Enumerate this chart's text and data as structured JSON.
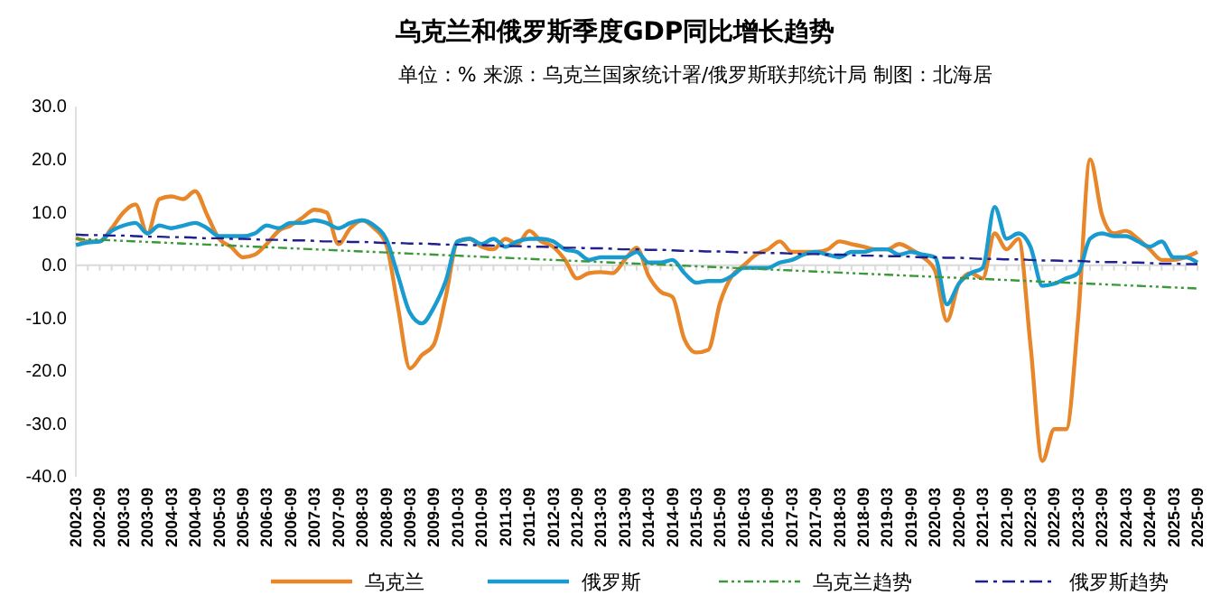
{
  "chart_data": {
    "type": "line",
    "title": "乌克兰和俄罗斯季度GDP同比增长趋势",
    "subtitle": "单位：% 来源：乌克兰国家统计署/俄罗斯联邦统计局 制图：北海居",
    "categories": [
      "2002-03",
      null,
      "2002-09",
      null,
      "2003-03",
      null,
      "2003-09",
      null,
      "2004-03",
      null,
      "2004-09",
      null,
      "2005-03",
      null,
      "2005-09",
      null,
      "2006-03",
      null,
      "2006-09",
      null,
      "2007-03",
      null,
      "2007-09",
      null,
      "2008-03",
      null,
      "2008-09",
      null,
      "2009-03",
      null,
      "2009-09",
      null,
      "2010-03",
      null,
      "2010-09",
      null,
      "2011-03",
      null,
      "2011-09",
      null,
      "2012-03",
      null,
      "2012-09",
      null,
      "2013-03",
      null,
      "2013-09",
      null,
      "2014-03",
      null,
      "2014-09",
      null,
      "2015-03",
      null,
      "2015-09",
      null,
      "2016-03",
      null,
      "2016-09",
      null,
      "2017-03",
      null,
      "2017-09",
      null,
      "2018-03",
      null,
      "2018-09",
      null,
      "2019-03",
      null,
      "2019-09",
      null,
      "2020-03",
      null,
      "2020-09",
      null,
      "2021-03",
      null,
      "2021-09",
      null,
      "2022-03",
      null,
      "2022-09",
      null,
      "2023-03",
      null,
      "2023-09",
      null,
      "2024-03",
      null,
      "2024-09",
      null,
      "2025-03",
      null,
      "2025-09"
    ],
    "series": [
      {
        "name": "乌克兰",
        "color": "#e8862a",
        "line_style": "solid",
        "values": [
          5.2,
          4.5,
          4.5,
          7,
          10,
          11.5,
          6,
          12.5,
          13,
          12.5,
          14,
          9.5,
          5,
          3.5,
          1.5,
          2,
          4,
          6.5,
          7.5,
          9,
          10.5,
          10,
          4,
          7,
          8.5,
          7,
          4,
          -8,
          -19.5,
          -17,
          -15,
          -6,
          4.5,
          5,
          3.5,
          3,
          5,
          4,
          6.5,
          4.5,
          3.5,
          1,
          -2.5,
          -1.5,
          -1.3,
          -1.5,
          1,
          3.3,
          -2,
          -5,
          -6,
          -14,
          -16.5,
          -16,
          -7,
          -2,
          0,
          2,
          3,
          4.5,
          2.5,
          2.5,
          2.5,
          3,
          4.5,
          4,
          3.5,
          3,
          3,
          4,
          3,
          1.5,
          -1,
          -10.5,
          -3.5,
          -1.5,
          -2.5,
          6,
          3,
          5,
          -15,
          -37,
          -31,
          -31,
          -10,
          20,
          9.5,
          6,
          6.5,
          5,
          3,
          1,
          1,
          1.5,
          2.5
        ]
      },
      {
        "name": "俄罗斯",
        "color": "#1a9bd0",
        "line_style": "solid",
        "values": [
          3.8,
          4.3,
          4.5,
          6.5,
          7.5,
          8,
          6,
          7.5,
          7,
          7.5,
          8,
          7,
          5.5,
          5.5,
          5.5,
          6,
          7.5,
          7,
          8,
          8,
          8.5,
          8,
          7,
          8,
          8.5,
          7.5,
          5,
          -2,
          -9,
          -11,
          -8,
          -3,
          4.5,
          5,
          4,
          5,
          3.5,
          4.5,
          5,
          5,
          4.5,
          3,
          2.5,
          1,
          1.5,
          1.5,
          1.5,
          2.5,
          0.5,
          0.5,
          1,
          -1.5,
          -3.3,
          -3,
          -3,
          -2,
          -0.5,
          -0.5,
          -0.5,
          0.5,
          1,
          2,
          2.5,
          2,
          1.5,
          2.5,
          2.5,
          3,
          3,
          2,
          2.5,
          2,
          1.5,
          -7.4,
          -3.5,
          -1.5,
          -0.5,
          11,
          5,
          6,
          3.5,
          -3.9,
          -3.5,
          -2.5,
          -1.5,
          5,
          6,
          5.5,
          5.5,
          4.5,
          3.5,
          4.5,
          1.5,
          1.5,
          0.5
        ]
      },
      {
        "name": "乌克兰趋势",
        "color": "#3a9a3a",
        "line_style": "dotted",
        "values": [
          5,
          4.9,
          4.8,
          4.7,
          4.6,
          4.5,
          4.4,
          4.3,
          4.2,
          4.1,
          4,
          3.9,
          3.8,
          3.7,
          3.6,
          3.5,
          3.4,
          3.3,
          3.2,
          3.1,
          3,
          2.9,
          2.8,
          2.7,
          2.6,
          2.5,
          2.4,
          2.3,
          2.2,
          2.1,
          2,
          1.9,
          1.8,
          1.7,
          1.6,
          1.5,
          1.4,
          1.3,
          1.2,
          1.1,
          1,
          0.9,
          0.8,
          0.7,
          0.6,
          0.5,
          0.4,
          0.3,
          0.2,
          0.1,
          0,
          -0.1,
          -0.2,
          -0.3,
          -0.4,
          -0.5,
          -0.6,
          -0.7,
          -0.8,
          -0.9,
          -1,
          -1.1,
          -1.2,
          -1.3,
          -1.4,
          -1.5,
          -1.6,
          -1.7,
          -1.8,
          -1.9,
          -2,
          -2.1,
          -2.2,
          -2.3,
          -2.4,
          -2.5,
          -2.6,
          -2.7,
          -2.8,
          -2.9,
          -3,
          -3.1,
          -3.2,
          -3.3,
          -3.4,
          -3.5,
          -3.6,
          -3.7,
          -3.8,
          -3.9,
          -4,
          -4.1,
          -4.2,
          -4.3,
          -4.4
        ]
      },
      {
        "name": "俄罗斯趋势",
        "color": "#1f1f8f",
        "line_style": "dashed",
        "values": [
          5.8,
          5.7,
          5.7,
          5.6,
          5.6,
          5.5,
          5.4,
          5.4,
          5.3,
          5.3,
          5.2,
          5.1,
          5.1,
          5,
          5,
          4.9,
          4.8,
          4.8,
          4.7,
          4.7,
          4.6,
          4.5,
          4.5,
          4.4,
          4.4,
          4.3,
          4.2,
          4.2,
          4.1,
          4.1,
          4,
          3.9,
          3.9,
          3.8,
          3.8,
          3.7,
          3.6,
          3.6,
          3.5,
          3.5,
          3.4,
          3.3,
          3.3,
          3.2,
          3.2,
          3.1,
          3,
          3,
          2.9,
          2.9,
          2.8,
          2.7,
          2.7,
          2.6,
          2.6,
          2.5,
          2.4,
          2.4,
          2.3,
          2.3,
          2.2,
          2.1,
          2.1,
          2,
          2,
          1.9,
          1.8,
          1.8,
          1.7,
          1.7,
          1.6,
          1.5,
          1.5,
          1.4,
          1.4,
          1.3,
          1.2,
          1.2,
          1.1,
          1.1,
          1,
          0.9,
          0.9,
          0.8,
          0.8,
          0.7,
          0.6,
          0.6,
          0.5,
          0.5,
          0.4,
          0.3,
          0.3,
          0.2,
          0.2
        ]
      }
    ],
    "ylim": [
      -40,
      30
    ],
    "yticks": [
      {
        "value": 30,
        "label": "30.0"
      },
      {
        "value": 20,
        "label": "20.0"
      },
      {
        "value": 10,
        "label": "10.0"
      },
      {
        "value": 0,
        "label": "0.0"
      },
      {
        "value": -10,
        "label": "-10.0"
      },
      {
        "value": -20,
        "label": "-20.0"
      },
      {
        "value": -30,
        "label": "-30.0"
      },
      {
        "value": -40,
        "label": "-40.0"
      }
    ],
    "legend": "bottom",
    "marker": "none"
  }
}
